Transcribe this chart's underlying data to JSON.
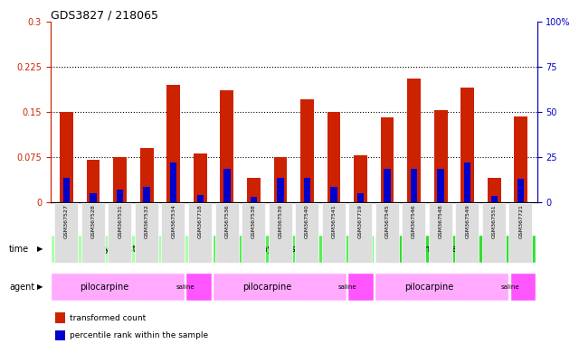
{
  "title": "GDS3827 / 218065",
  "samples": [
    "GSM367527",
    "GSM367528",
    "GSM367531",
    "GSM367532",
    "GSM367534",
    "GSM367718",
    "GSM367536",
    "GSM367538",
    "GSM367539",
    "GSM367540",
    "GSM367541",
    "GSM367719",
    "GSM367545",
    "GSM367546",
    "GSM367548",
    "GSM367549",
    "GSM367551",
    "GSM367721"
  ],
  "red_values": [
    0.15,
    0.07,
    0.075,
    0.09,
    0.195,
    0.08,
    0.185,
    0.04,
    0.075,
    0.17,
    0.15,
    0.078,
    0.14,
    0.205,
    0.152,
    0.19,
    0.04,
    0.142
  ],
  "blue_values": [
    0.04,
    0.015,
    0.02,
    0.025,
    0.065,
    0.012,
    0.055,
    0.008,
    0.04,
    0.04,
    0.025,
    0.015,
    0.055,
    0.055,
    0.055,
    0.065,
    0.01,
    0.038
  ],
  "ylim_left": [
    0,
    0.3
  ],
  "ylim_right": [
    0,
    100
  ],
  "yticks_left": [
    0,
    0.075,
    0.15,
    0.225,
    0.3
  ],
  "yticks_right": [
    0,
    25,
    50,
    75,
    100
  ],
  "ytick_labels_left": [
    "0",
    "0.075",
    "0.15",
    "0.225",
    "0.3"
  ],
  "ytick_labels_right": [
    "0",
    "25",
    "50",
    "75",
    "100%"
  ],
  "hlines": [
    0.075,
    0.15,
    0.225
  ],
  "time_groups": [
    {
      "label": "3 days post-SE",
      "start": 0,
      "end": 5,
      "color": "#aaffaa"
    },
    {
      "label": "7 days post-SE",
      "start": 6,
      "end": 11,
      "color": "#55ee55"
    },
    {
      "label": "immediate",
      "start": 12,
      "end": 17,
      "color": "#33dd33"
    }
  ],
  "agent_groups": [
    {
      "label": "pilocarpine",
      "start": 0,
      "end": 4,
      "color": "#ffaaff"
    },
    {
      "label": "saline",
      "start": 5,
      "end": 5,
      "color": "#ff55ff"
    },
    {
      "label": "pilocarpine",
      "start": 6,
      "end": 10,
      "color": "#ffaaff"
    },
    {
      "label": "saline",
      "start": 11,
      "end": 11,
      "color": "#ff55ff"
    },
    {
      "label": "pilocarpine",
      "start": 12,
      "end": 16,
      "color": "#ffaaff"
    },
    {
      "label": "saline",
      "start": 17,
      "end": 17,
      "color": "#ff55ff"
    }
  ],
  "bar_color_red": "#cc2200",
  "bar_color_blue": "#0000cc",
  "bar_width": 0.5,
  "left_axis_color": "#cc2200",
  "right_axis_color": "#0000cc",
  "background_color": "#ffffff",
  "tick_area_color": "#dddddd",
  "legend_items": [
    {
      "color": "#cc2200",
      "label": "transformed count"
    },
    {
      "color": "#0000cc",
      "label": "percentile rank within the sample"
    }
  ],
  "time_label": "time",
  "agent_label": "agent"
}
